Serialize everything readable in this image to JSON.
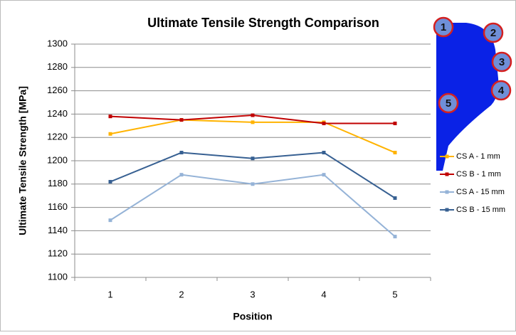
{
  "chart_data": {
    "type": "line",
    "title": "Ultimate Tensile Strength Comparison",
    "x_label": "Position",
    "y_label": "Ultimate Tensile Strength [MPa]",
    "categories": [
      "1",
      "2",
      "3",
      "4",
      "5"
    ],
    "series": [
      {
        "name": "CS A - 1 mm",
        "color": "#ffb300",
        "values": [
          1223,
          1235,
          1233,
          1233,
          1207
        ]
      },
      {
        "name": "CS B - 1 mm",
        "color": "#c00000",
        "values": [
          1238,
          1235,
          1239,
          1232,
          1232
        ]
      },
      {
        "name": "CS A - 15 mm",
        "color": "#95b3d7",
        "values": [
          1149,
          1188,
          1180,
          1188,
          1135
        ]
      },
      {
        "name": "CS B - 15 mm",
        "color": "#376092",
        "values": [
          1182,
          1207,
          1202,
          1207,
          1168
        ]
      }
    ],
    "ylim": [
      1100,
      1300
    ],
    "yticks": [
      1100,
      1120,
      1140,
      1160,
      1180,
      1200,
      1220,
      1240,
      1260,
      1280,
      1300
    ],
    "grid": true,
    "legend": "right",
    "annotations": [
      "1",
      "2",
      "3",
      "4",
      "5"
    ]
  }
}
